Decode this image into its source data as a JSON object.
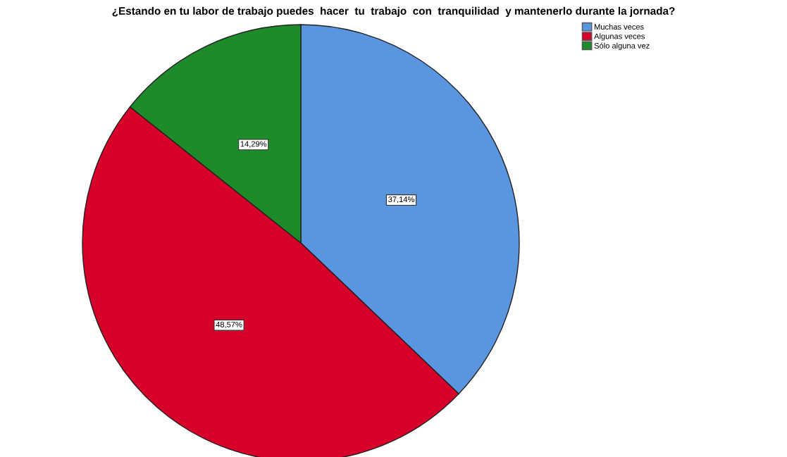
{
  "chart_data": {
    "type": "pie",
    "title": "¿Estando en tu labor de trabajo puedes  hacer  tu  trabajo  con  tranquilidad  y mantenerlo durante la jornada?",
    "categories": [
      "Muchas veces",
      "Algunas veces",
      "Sólo alguna vez"
    ],
    "values": [
      37.14,
      48.57,
      14.29
    ],
    "colors": [
      "#5a95e0",
      "#d7002a",
      "#1f8a2a"
    ],
    "value_labels": [
      "37,14%",
      "48,57%",
      "14,29%"
    ],
    "legend": "top right"
  }
}
